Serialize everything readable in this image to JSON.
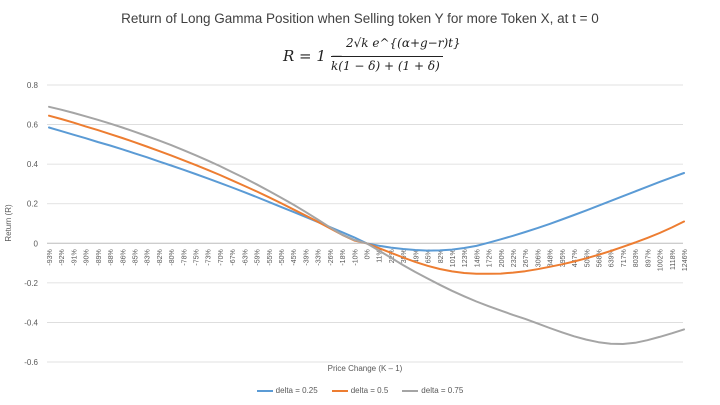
{
  "chart_data": {
    "type": "line",
    "title": "Return of Long Gamma Position when Selling token Y for more Token X, at t = 0",
    "formula": {
      "lhs": "R = 1 −",
      "numerator": "2√k e^{(α+g−r)t}",
      "denominator": "k(1 − δ) + (1 + δ)"
    },
    "xlabel": "Price Change (K – 1)",
    "ylabel": "Return (R)",
    "ylim": [
      -0.6,
      0.8
    ],
    "yticks": [
      0.8,
      0.6,
      0.4,
      0.2,
      0,
      -0.2,
      -0.4,
      -0.6
    ],
    "grid": true,
    "categories": [
      "-93%",
      "-92%",
      "-91%",
      "-90%",
      "-89%",
      "-88%",
      "-86%",
      "-85%",
      "-83%",
      "-82%",
      "-80%",
      "-78%",
      "-75%",
      "-73%",
      "-70%",
      "-67%",
      "-63%",
      "-59%",
      "-55%",
      "-50%",
      "-45%",
      "-39%",
      "-33%",
      "-26%",
      "-18%",
      "-10%",
      "0%",
      "11%",
      "22%",
      "35%",
      "49%",
      "65%",
      "82%",
      "101%",
      "123%",
      "146%",
      "172%",
      "200%",
      "232%",
      "267%",
      "306%",
      "348%",
      "395%",
      "447%",
      "505%",
      "568%",
      "639%",
      "717%",
      "803%",
      "897%",
      "1002%",
      "1118%",
      "1246%"
    ],
    "series": [
      {
        "name": "delta = 0.25",
        "color": "#5b9bd5",
        "values": [
          0.585,
          0.567,
          0.549,
          0.531,
          0.512,
          0.494,
          0.475,
          0.455,
          0.435,
          0.414,
          0.393,
          0.372,
          0.35,
          0.328,
          0.305,
          0.282,
          0.258,
          0.234,
          0.209,
          0.184,
          0.159,
          0.134,
          0.108,
          0.082,
          0.056,
          0.03,
          0.0,
          -0.012,
          -0.022,
          -0.029,
          -0.034,
          -0.037,
          -0.036,
          -0.032,
          -0.024,
          -0.013,
          0.003,
          0.02,
          0.038,
          0.057,
          0.077,
          0.098,
          0.12,
          0.143,
          0.166,
          0.19,
          0.214,
          0.238,
          0.262,
          0.286,
          0.31,
          0.333,
          0.355
        ]
      },
      {
        "name": "delta = 0.5",
        "color": "#ed7d31",
        "values": [
          0.645,
          0.628,
          0.61,
          0.591,
          0.572,
          0.552,
          0.532,
          0.511,
          0.489,
          0.467,
          0.444,
          0.42,
          0.396,
          0.371,
          0.345,
          0.318,
          0.29,
          0.262,
          0.233,
          0.203,
          0.172,
          0.141,
          0.109,
          0.076,
          0.043,
          0.014,
          0.0,
          -0.024,
          -0.048,
          -0.072,
          -0.094,
          -0.114,
          -0.13,
          -0.142,
          -0.15,
          -0.154,
          -0.154,
          -0.153,
          -0.148,
          -0.141,
          -0.131,
          -0.119,
          -0.106,
          -0.092,
          -0.076,
          -0.058,
          -0.039,
          -0.018,
          0.004,
          0.027,
          0.052,
          0.08,
          0.11
        ]
      },
      {
        "name": "delta = 0.75",
        "color": "#a5a5a5",
        "values": [
          0.69,
          0.675,
          0.659,
          0.642,
          0.624,
          0.605,
          0.585,
          0.564,
          0.542,
          0.52,
          0.496,
          0.471,
          0.445,
          0.418,
          0.39,
          0.36,
          0.33,
          0.298,
          0.265,
          0.231,
          0.196,
          0.159,
          0.12,
          0.081,
          0.044,
          0.017,
          0.0,
          -0.036,
          -0.073,
          -0.11,
          -0.145,
          -0.178,
          -0.21,
          -0.24,
          -0.268,
          -0.294,
          -0.318,
          -0.34,
          -0.362,
          -0.382,
          -0.405,
          -0.428,
          -0.45,
          -0.47,
          -0.487,
          -0.5,
          -0.508,
          -0.509,
          -0.503,
          -0.49,
          -0.473,
          -0.455,
          -0.435
        ]
      }
    ]
  }
}
